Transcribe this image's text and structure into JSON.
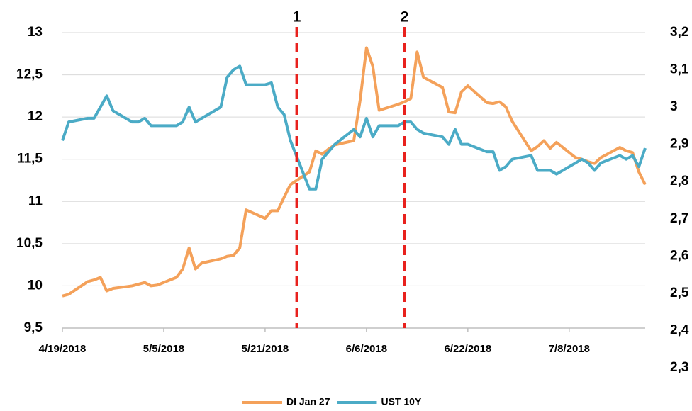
{
  "chart_data": {
    "type": "line",
    "x": [
      "4/19/2018",
      "4/20/2018",
      "4/23/2018",
      "4/24/2018",
      "4/25/2018",
      "4/26/2018",
      "4/27/2018",
      "4/30/2018",
      "5/1/2018",
      "5/2/2018",
      "5/3/2018",
      "5/4/2018",
      "5/7/2018",
      "5/8/2018",
      "5/9/2018",
      "5/10/2018",
      "5/11/2018",
      "5/14/2018",
      "5/15/2018",
      "5/16/2018",
      "5/17/2018",
      "5/18/2018",
      "5/21/2018",
      "5/22/2018",
      "5/23/2018",
      "5/24/2018",
      "5/25/2018",
      "5/28/2018",
      "5/29/2018",
      "5/30/2018",
      "5/31/2018",
      "6/1/2018",
      "6/4/2018",
      "6/5/2018",
      "6/6/2018",
      "6/7/2018",
      "6/8/2018",
      "6/11/2018",
      "6/12/2018",
      "6/13/2018",
      "6/14/2018",
      "6/15/2018",
      "6/18/2018",
      "6/19/2018",
      "6/20/2018",
      "6/21/2018",
      "6/22/2018",
      "6/25/2018",
      "6/26/2018",
      "6/27/2018",
      "6/28/2018",
      "6/29/2018",
      "7/2/2018",
      "7/3/2018",
      "7/4/2018",
      "7/5/2018",
      "7/6/2018",
      "7/9/2018",
      "7/10/2018",
      "7/11/2018",
      "7/12/2018",
      "7/13/2018",
      "7/16/2018",
      "7/17/2018",
      "7/18/2018",
      "7/19/2018",
      "7/20/2018"
    ],
    "series": [
      {
        "name": "DI Jan 27",
        "color": "#f4a15a",
        "values": [
          9.88,
          9.9,
          10.05,
          10.07,
          10.1,
          9.94,
          9.97,
          10.0,
          10.02,
          10.04,
          10.0,
          10.01,
          10.1,
          10.2,
          10.45,
          10.2,
          10.27,
          10.32,
          10.35,
          10.36,
          10.45,
          10.9,
          10.8,
          10.89,
          10.89,
          11.05,
          11.2,
          11.35,
          11.6,
          11.56,
          11.62,
          11.67,
          11.72,
          12.2,
          12.82,
          12.6,
          12.08,
          12.15,
          12.18,
          12.22,
          12.77,
          12.47,
          12.35,
          12.06,
          12.05,
          12.3,
          12.37,
          12.17,
          12.16,
          12.18,
          12.12,
          11.95,
          11.6,
          11.65,
          11.72,
          11.63,
          11.7,
          11.52,
          11.5,
          11.47,
          11.45,
          11.52,
          11.64,
          11.6,
          11.58,
          11.35,
          11.2
        ]
      },
      {
        "name": "UST 10Y",
        "color": "#4babc6",
        "axis": "y2",
        "values": [
          2.91,
          2.96,
          2.97,
          2.97,
          3.0,
          3.03,
          2.99,
          2.96,
          2.96,
          2.97,
          2.95,
          2.95,
          2.95,
          2.96,
          3.0,
          2.96,
          2.97,
          3.0,
          3.08,
          3.1,
          3.11,
          3.06,
          3.06,
          3.065,
          3.0,
          2.98,
          2.91,
          2.78,
          2.78,
          2.86,
          2.88,
          2.9,
          2.94,
          2.92,
          2.97,
          2.92,
          2.95,
          2.95,
          2.96,
          2.96,
          2.94,
          2.93,
          2.92,
          2.9,
          2.94,
          2.9,
          2.9,
          2.88,
          2.88,
          2.83,
          2.84,
          2.86,
          2.87,
          2.83,
          2.83,
          2.83,
          2.82,
          2.85,
          2.86,
          2.85,
          2.83,
          2.85,
          2.87,
          2.86,
          2.87,
          2.84,
          2.89
        ]
      }
    ],
    "xlim": [
      "4/19/2018",
      "7/20/2018"
    ],
    "xticks": [
      "4/19/2018",
      "5/5/2018",
      "5/21/2018",
      "6/6/2018",
      "6/22/2018",
      "7/8/2018"
    ],
    "ylim": [
      9.5,
      13
    ],
    "yticks": [
      {
        "value": 9.5,
        "label": "9,5"
      },
      10,
      {
        "value": 10.5,
        "label": "10,5"
      },
      11,
      {
        "value": 11.5,
        "label": "11,5"
      },
      12,
      {
        "value": 12.5,
        "label": "12,5"
      },
      13
    ],
    "y2lim": [
      2.3,
      3.2
    ],
    "y2ticks": [
      {
        "value": 2.3,
        "label": "2,3"
      },
      {
        "value": 2.4,
        "label": "2,4"
      },
      {
        "value": 2.5,
        "label": "2,5"
      },
      {
        "value": 2.6,
        "label": "2,6"
      },
      {
        "value": 2.7,
        "label": "2,7"
      },
      {
        "value": 2.8,
        "label": "2,8"
      },
      {
        "value": 2.9,
        "label": "2,9"
      },
      3,
      {
        "value": 3.1,
        "label": "3,1"
      },
      {
        "value": 3.2,
        "label": "3,2"
      }
    ],
    "grid": true,
    "legend": "bottom",
    "annotations": [
      {
        "label": "1",
        "x": "5/26/2018",
        "color": "#e8211d"
      },
      {
        "label": "2",
        "x": "6/12/2018",
        "color": "#e8211d"
      }
    ]
  }
}
